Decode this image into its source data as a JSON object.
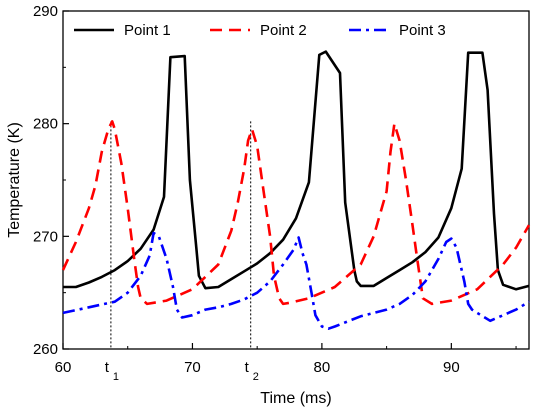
{
  "chart_data": {
    "type": "line",
    "title": "",
    "xlabel": "Time (ms)",
    "ylabel": "Temperature (K)",
    "xlim": [
      60,
      96
    ],
    "ylim": [
      260,
      290
    ],
    "xticks": [
      60,
      70,
      80,
      90
    ],
    "yticks": [
      260,
      270,
      280,
      290
    ],
    "grid": false,
    "legend": "top, horizontal",
    "markers": [
      {
        "label": "t",
        "sub": "1",
        "x": 63.7
      },
      {
        "label": "t",
        "sub": "2",
        "x": 74.5
      }
    ],
    "series": [
      {
        "name": "Point 1",
        "color": "#000000",
        "style": "solid",
        "x": [
          60,
          61,
          62,
          63,
          64,
          65,
          66,
          67,
          67.8,
          68.3,
          69.4,
          69.8,
          70.3,
          70.5,
          71,
          72,
          73,
          74,
          75,
          76,
          77,
          78,
          79,
          79.8,
          80.3,
          81.4,
          81.8,
          82.5,
          82.7,
          83,
          84,
          85,
          86,
          87,
          88,
          89,
          90,
          90.8,
          91.3,
          92.4,
          92.8,
          93.3,
          93.6,
          94,
          95,
          96
        ],
        "y": [
          265.5,
          265.5,
          265.9,
          266.4,
          267.0,
          267.8,
          268.9,
          270.6,
          273.5,
          285.9,
          286.0,
          275.0,
          269.0,
          266.5,
          265.4,
          265.5,
          266.2,
          266.9,
          267.6,
          268.5,
          269.7,
          271.6,
          274.8,
          286.1,
          286.4,
          284.5,
          273.0,
          267.0,
          266.0,
          265.6,
          265.6,
          266.3,
          267.0,
          267.7,
          268.6,
          269.9,
          272.5,
          276.0,
          286.3,
          286.3,
          283.0,
          272.0,
          267.0,
          265.7,
          265.3,
          265.6
        ]
      },
      {
        "name": "Point 2",
        "color": "#ff0000",
        "style": "dashed",
        "x": [
          60,
          61,
          62,
          62.5,
          63,
          63.5,
          63.8,
          64,
          64.5,
          65,
          65.5,
          65.8,
          66,
          66.5,
          68,
          70,
          72,
          73,
          73.5,
          74,
          74.3,
          74.6,
          75,
          75.5,
          76,
          76.3,
          76.7,
          77,
          77.5,
          79,
          81,
          83,
          84,
          85,
          85.3,
          85.6,
          86,
          86.5,
          87,
          87.3,
          87.8,
          88.5,
          90,
          92,
          94,
          95,
          96
        ],
        "y": [
          267.0,
          269.5,
          272.5,
          274.5,
          277.5,
          279.5,
          280.2,
          279.5,
          276.5,
          272.5,
          268.0,
          265.5,
          264.5,
          264.0,
          264.3,
          265.3,
          267.5,
          270.5,
          273.0,
          276.0,
          278.5,
          279.5,
          278.0,
          274.0,
          270.0,
          266.5,
          264.5,
          264.0,
          264.1,
          264.5,
          265.5,
          267.5,
          270.0,
          274.0,
          277.5,
          280.0,
          278.5,
          275.0,
          271.0,
          268.5,
          264.5,
          264.0,
          264.3,
          265.3,
          267.5,
          269.0,
          271.0
        ]
      },
      {
        "name": "Point 3",
        "color": "#0000ff",
        "style": "dashdot",
        "x": [
          60,
          62,
          64,
          65,
          66,
          66.7,
          67,
          67.4,
          68,
          68.5,
          68.8,
          69.2,
          70,
          71,
          72,
          73,
          74,
          75,
          76,
          77,
          77.8,
          78.2,
          78.5,
          78.8,
          79.2,
          79.5,
          80,
          80.5,
          81,
          83,
          85,
          86,
          87,
          88,
          89,
          89.6,
          90,
          90.4,
          91,
          91.3,
          91.6,
          92,
          93,
          94,
          95,
          96
        ],
        "y": [
          263.2,
          263.7,
          264.2,
          265.0,
          266.5,
          268.3,
          270.3,
          270.0,
          268.0,
          265.5,
          263.5,
          262.8,
          263.0,
          263.5,
          263.7,
          264.0,
          264.4,
          265.0,
          266.0,
          267.5,
          268.8,
          269.9,
          268.5,
          267.5,
          265.0,
          263.0,
          262.0,
          261.8,
          262.0,
          262.9,
          263.5,
          264.0,
          264.8,
          266.0,
          268.0,
          269.5,
          269.8,
          269.0,
          266.0,
          264.0,
          263.5,
          263.2,
          262.5,
          263.0,
          263.5,
          264.2
        ]
      }
    ]
  }
}
